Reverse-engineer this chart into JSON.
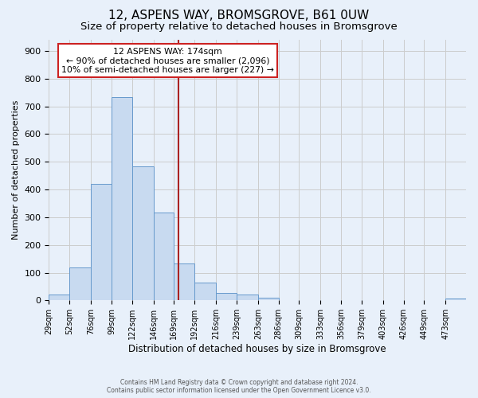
{
  "title": "12, ASPENS WAY, BROMSGROVE, B61 0UW",
  "subtitle": "Size of property relative to detached houses in Bromsgrove",
  "xlabel": "Distribution of detached houses by size in Bromsgrove",
  "ylabel": "Number of detached properties",
  "bin_edges": [
    29,
    52,
    76,
    99,
    122,
    146,
    169,
    192,
    216,
    239,
    263,
    286,
    309,
    333,
    356,
    379,
    403,
    426,
    449,
    473,
    496
  ],
  "bar_heights": [
    22,
    120,
    420,
    732,
    482,
    318,
    133,
    63,
    28,
    22,
    10,
    0,
    0,
    0,
    0,
    0,
    0,
    0,
    0,
    8
  ],
  "bar_color": "#c8daf0",
  "bar_edgecolor": "#6699cc",
  "vline_x": 174,
  "vline_color": "#aa2222",
  "annotation_title": "12 ASPENS WAY: 174sqm",
  "annotation_line1": "← 90% of detached houses are smaller (2,096)",
  "annotation_line2": "10% of semi-detached houses are larger (227) →",
  "annotation_box_edgecolor": "#cc2222",
  "annotation_box_facecolor": "#ffffff",
  "ylim": [
    0,
    940
  ],
  "yticks": [
    0,
    100,
    200,
    300,
    400,
    500,
    600,
    700,
    800,
    900
  ],
  "grid_color": "#cccccc",
  "background_color": "#e8f0fa",
  "footer_line1": "Contains HM Land Registry data © Crown copyright and database right 2024.",
  "footer_line2": "Contains public sector information licensed under the Open Government Licence v3.0.",
  "title_fontsize": 11,
  "subtitle_fontsize": 9.5
}
